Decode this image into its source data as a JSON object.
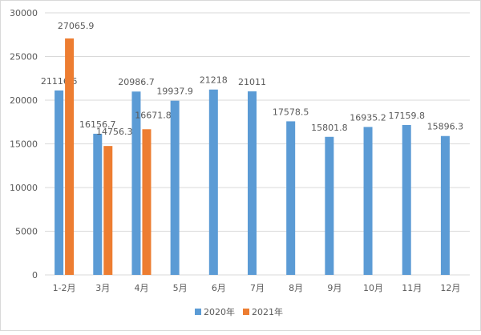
{
  "chart_data": {
    "type": "bar",
    "categories": [
      "1-2月",
      "3月",
      "4月",
      "5月",
      "6月",
      "7月",
      "8月",
      "9月",
      "10月",
      "11月",
      "12月"
    ],
    "series": [
      {
        "name": "2020年",
        "color": "#5b9bd5",
        "values": [
          21116.6,
          16156.7,
          20986.7,
          19937.9,
          21218,
          21011,
          17578.5,
          15801.8,
          16935.2,
          17159.8,
          15896.3
        ]
      },
      {
        "name": "2021年",
        "color": "#ed7d31",
        "values": [
          27065.9,
          14756.3,
          16671.8,
          null,
          null,
          null,
          null,
          null,
          null,
          null,
          null
        ]
      }
    ],
    "ylim": [
      0,
      30000
    ],
    "yticks": [
      0,
      5000,
      10000,
      15000,
      20000,
      25000,
      30000
    ],
    "grid": true,
    "legend": "bottom"
  }
}
